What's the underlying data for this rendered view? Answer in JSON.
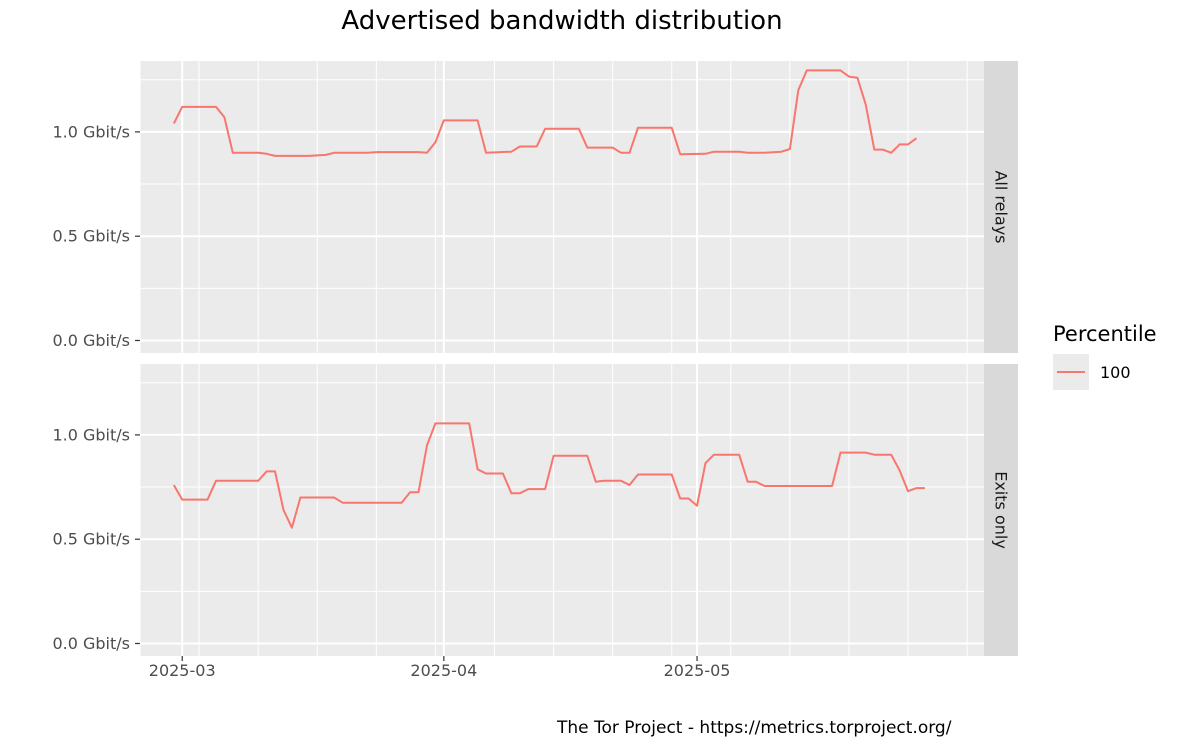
{
  "title": "Advertised bandwidth distribution",
  "credit": "The Tor Project - https://metrics.torproject.org/",
  "legend": {
    "title": "Percentile",
    "items": [
      {
        "label": "100",
        "color": "#f8766d"
      }
    ]
  },
  "chart_data": {
    "type": "line",
    "title": "Advertised bandwidth distribution",
    "facets": [
      "All relays",
      "Exits only"
    ],
    "x_ticks": [
      "2025-03-01",
      "2025-04-01",
      "2025-05-01"
    ],
    "x_tick_labels": [
      "2025-03",
      "2025-04",
      "2025-05"
    ],
    "xlim": [
      "2025-02-24",
      "2025-06-04"
    ],
    "y_ticks": [
      0.0,
      0.5,
      1.0
    ],
    "y_tick_labels": [
      "0.0 Gbit/s",
      "0.5 Gbit/s",
      "1.0 Gbit/s"
    ],
    "ylim": [
      -0.06,
      1.34
    ],
    "y_unit": "Gbit/s",
    "grid": true,
    "legend_position": "right",
    "series_color": "#f8766d",
    "series": [
      {
        "facet": "All relays",
        "name": "100",
        "points": [
          [
            "2025-02-28",
            1.04
          ],
          [
            "2025-03-01",
            1.12
          ],
          [
            "2025-03-02",
            1.12
          ],
          [
            "2025-03-05",
            1.12
          ],
          [
            "2025-03-06",
            1.07
          ],
          [
            "2025-03-07",
            0.9
          ],
          [
            "2025-03-10",
            0.9
          ],
          [
            "2025-03-11",
            0.895
          ],
          [
            "2025-03-12",
            0.885
          ],
          [
            "2025-03-16",
            0.885
          ],
          [
            "2025-03-18",
            0.89
          ],
          [
            "2025-03-19",
            0.9
          ],
          [
            "2025-03-23",
            0.9
          ],
          [
            "2025-03-24",
            0.903
          ],
          [
            "2025-03-29",
            0.903
          ],
          [
            "2025-03-30",
            0.9
          ],
          [
            "2025-03-31",
            0.95
          ],
          [
            "2025-04-01",
            1.055
          ],
          [
            "2025-04-05",
            1.055
          ],
          [
            "2025-04-06",
            0.9
          ],
          [
            "2025-04-09",
            0.905
          ],
          [
            "2025-04-10",
            0.93
          ],
          [
            "2025-04-12",
            0.93
          ],
          [
            "2025-04-13",
            1.015
          ],
          [
            "2025-04-17",
            1.015
          ],
          [
            "2025-04-18",
            0.925
          ],
          [
            "2025-04-21",
            0.925
          ],
          [
            "2025-04-22",
            0.9
          ],
          [
            "2025-04-23",
            0.9
          ],
          [
            "2025-04-24",
            1.02
          ],
          [
            "2025-04-28",
            1.02
          ],
          [
            "2025-04-29",
            0.893
          ],
          [
            "2025-05-02",
            0.895
          ],
          [
            "2025-05-03",
            0.905
          ],
          [
            "2025-05-06",
            0.905
          ],
          [
            "2025-05-07",
            0.9
          ],
          [
            "2025-05-09",
            0.9
          ],
          [
            "2025-05-11",
            0.905
          ],
          [
            "2025-05-12",
            0.918
          ],
          [
            "2025-05-13",
            1.2
          ],
          [
            "2025-05-14",
            1.295
          ],
          [
            "2025-05-18",
            1.295
          ],
          [
            "2025-05-19",
            1.265
          ],
          [
            "2025-05-20",
            1.26
          ],
          [
            "2025-05-21",
            1.13
          ],
          [
            "2025-05-22",
            0.915
          ],
          [
            "2025-05-23",
            0.915
          ],
          [
            "2025-05-24",
            0.9
          ],
          [
            "2025-05-25",
            0.94
          ],
          [
            "2025-05-26",
            0.94
          ],
          [
            "2025-05-27",
            0.97
          ]
        ]
      },
      {
        "facet": "Exits only",
        "name": "100",
        "points": [
          [
            "2025-02-28",
            0.76
          ],
          [
            "2025-03-01",
            0.69
          ],
          [
            "2025-03-04",
            0.69
          ],
          [
            "2025-03-05",
            0.78
          ],
          [
            "2025-03-10",
            0.78
          ],
          [
            "2025-03-11",
            0.825
          ],
          [
            "2025-03-12",
            0.825
          ],
          [
            "2025-03-13",
            0.64
          ],
          [
            "2025-03-14",
            0.555
          ],
          [
            "2025-03-15",
            0.7
          ],
          [
            "2025-03-19",
            0.7
          ],
          [
            "2025-03-20",
            0.675
          ],
          [
            "2025-03-27",
            0.675
          ],
          [
            "2025-03-28",
            0.725
          ],
          [
            "2025-03-29",
            0.725
          ],
          [
            "2025-03-30",
            0.95
          ],
          [
            "2025-03-31",
            1.055
          ],
          [
            "2025-04-04",
            1.055
          ],
          [
            "2025-04-05",
            0.835
          ],
          [
            "2025-04-06",
            0.815
          ],
          [
            "2025-04-08",
            0.815
          ],
          [
            "2025-04-09",
            0.72
          ],
          [
            "2025-04-10",
            0.72
          ],
          [
            "2025-04-11",
            0.74
          ],
          [
            "2025-04-13",
            0.74
          ],
          [
            "2025-04-14",
            0.9
          ],
          [
            "2025-04-18",
            0.9
          ],
          [
            "2025-04-19",
            0.775
          ],
          [
            "2025-04-20",
            0.78
          ],
          [
            "2025-04-22",
            0.78
          ],
          [
            "2025-04-23",
            0.76
          ],
          [
            "2025-04-24",
            0.81
          ],
          [
            "2025-04-28",
            0.81
          ],
          [
            "2025-04-29",
            0.695
          ],
          [
            "2025-04-30",
            0.695
          ],
          [
            "2025-05-01",
            0.66
          ],
          [
            "2025-05-02",
            0.865
          ],
          [
            "2025-05-03",
            0.905
          ],
          [
            "2025-05-06",
            0.905
          ],
          [
            "2025-05-07",
            0.775
          ],
          [
            "2025-05-08",
            0.775
          ],
          [
            "2025-05-09",
            0.755
          ],
          [
            "2025-05-17",
            0.755
          ],
          [
            "2025-05-18",
            0.915
          ],
          [
            "2025-05-21",
            0.915
          ],
          [
            "2025-05-22",
            0.905
          ],
          [
            "2025-05-24",
            0.905
          ],
          [
            "2025-05-25",
            0.83
          ],
          [
            "2025-05-26",
            0.73
          ],
          [
            "2025-05-27",
            0.745
          ],
          [
            "2025-05-28",
            0.745
          ]
        ]
      }
    ]
  }
}
